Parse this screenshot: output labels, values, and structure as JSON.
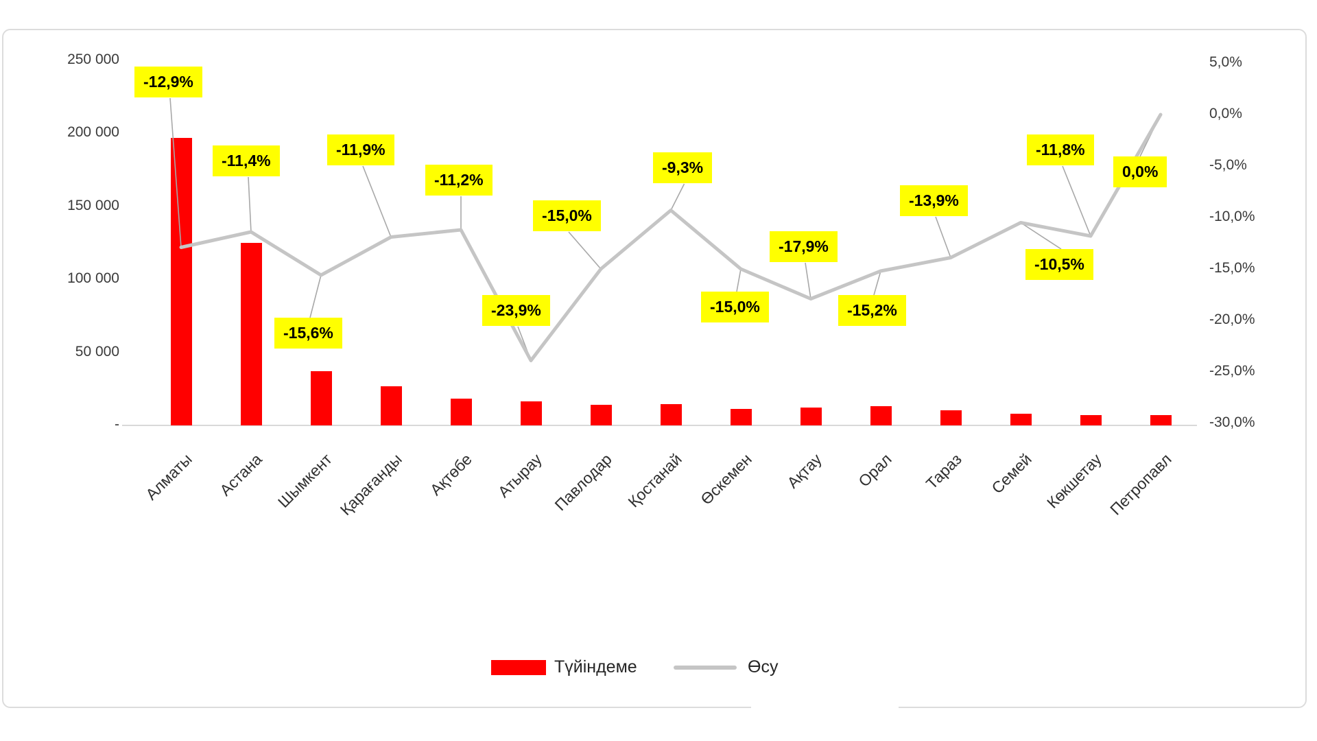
{
  "chart_data": {
    "type": "combo",
    "title": "",
    "categories": [
      "Алматы",
      "Астана",
      "Шымкент",
      "Қарағанды",
      "Ақтөбе",
      "Атырау",
      "Павлодар",
      "Қостанай",
      "Өскемен",
      "Ақтау",
      "Орал",
      "Тараз",
      "Семей",
      "Көкшетау",
      "Петропавл"
    ],
    "series": [
      {
        "name": "Түйіндеме",
        "type": "bar",
        "axis": "left",
        "color": "#ff0000",
        "values": [
          197000,
          125000,
          37000,
          27000,
          18500,
          16500,
          14000,
          14500,
          11500,
          12000,
          13000,
          10500,
          8000,
          7000,
          7000
        ]
      },
      {
        "name": "Өсу",
        "type": "line",
        "axis": "right",
        "color": "#c5c5c5",
        "values": [
          -12.9,
          -11.4,
          -15.6,
          -11.9,
          -11.2,
          -23.9,
          -15.0,
          -9.3,
          -15.0,
          -17.9,
          -15.2,
          -13.9,
          -10.5,
          -11.8,
          0.0
        ],
        "labels": [
          "-12,9%",
          "-11,4%",
          "-15,6%",
          "-11,9%",
          "-11,2%",
          "-23,9%",
          "-15,0%",
          "-9,3%",
          "-15,0%",
          "-17,9%",
          "-15,2%",
          "-13,9%",
          "-10,5%",
          "-11,8%",
          "0,0%"
        ]
      }
    ],
    "left_axis": {
      "min": 0,
      "max": 250000,
      "ticks": [
        "250 000",
        "200 000",
        "150 000",
        "100 000",
        "50 000",
        "-"
      ]
    },
    "right_axis": {
      "min": -30,
      "max": 5,
      "ticks": [
        "5,0%",
        "0,0%",
        "-5,0%",
        "-10,0%",
        "-15,0%",
        "-20,0%",
        "-25,0%",
        "-30,0%"
      ]
    },
    "legend_position": "bottom",
    "label_bg": "#ffff00",
    "grid": "off"
  }
}
